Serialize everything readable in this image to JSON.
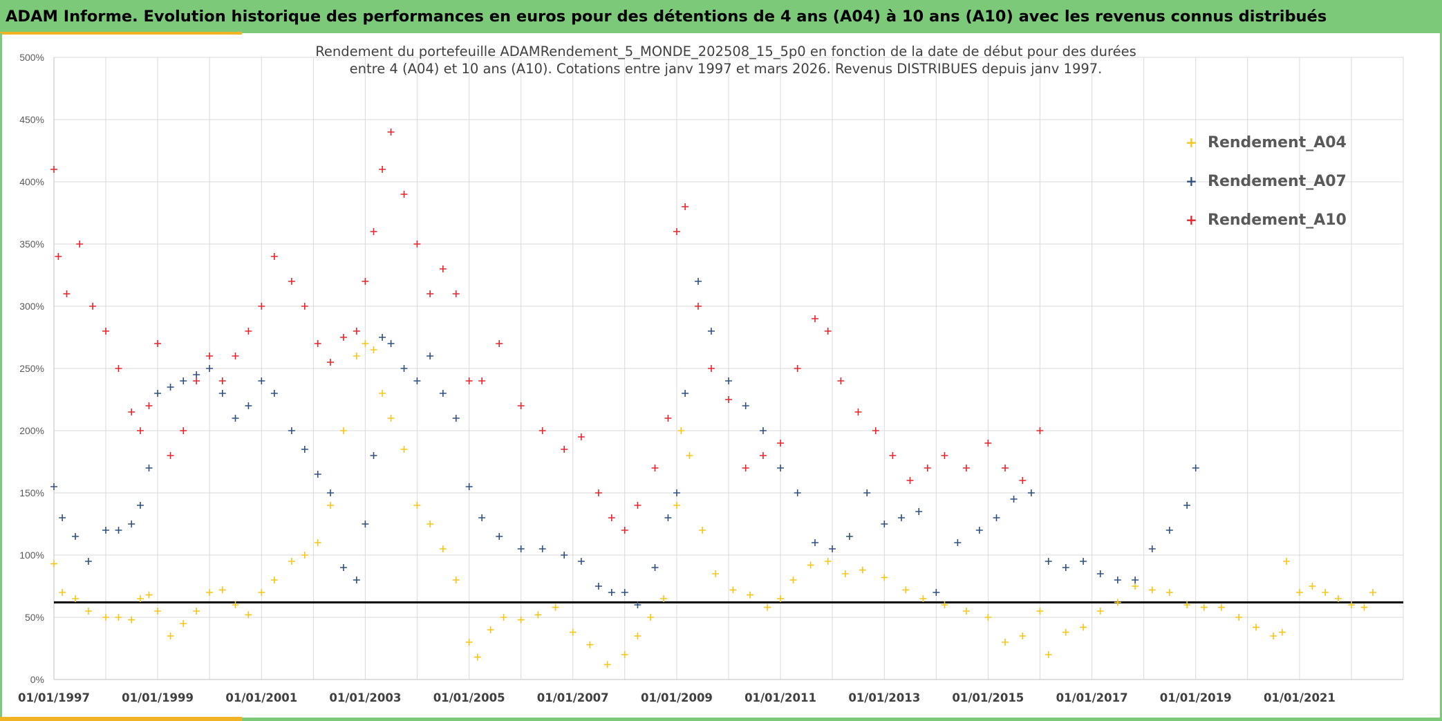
{
  "header": {
    "title": "ADAM Informe. Evolution historique des performances en euros pour des détentions de 4 ans (A04) à 10 ans (A10) avec les revenus connus distribués"
  },
  "colors": {
    "header_bg": "#7dc97a",
    "accent": "#f0b323",
    "A04": "#f5c518",
    "A07": "#2f4f7f",
    "A10": "#e3242b",
    "reference_line": "#000000",
    "gridline": "#d9d9d9"
  },
  "chart_data": {
    "type": "scatter",
    "title_line1": "Rendement du portefeuille ADAMRendement_5_MONDE_202508_15_5p0 en fonction de la date de début pour des durées",
    "title_line2": "entre 4 (A04) et 10 ans (A10). Cotations entre janv 1997 et mars 2026. Revenus DISTRIBUES depuis janv 1997.",
    "xlabel": "",
    "ylabel": "",
    "xlim": [
      "1997-01-01",
      "2023-01-01"
    ],
    "ylim": [
      0,
      500
    ],
    "y_unit": "%",
    "yticks": [
      0,
      50,
      100,
      150,
      200,
      250,
      300,
      350,
      400,
      450,
      500
    ],
    "ytick_labels": [
      "0%",
      "50%",
      "100%",
      "150%",
      "200%",
      "250%",
      "300%",
      "350%",
      "400%",
      "450%",
      "500%"
    ],
    "xtick_labels": [
      "01/01/1997",
      "01/01/1999",
      "01/01/2001",
      "01/01/2003",
      "01/01/2005",
      "01/01/2007",
      "01/01/2009",
      "01/01/2011",
      "01/01/2013",
      "01/01/2015",
      "01/01/2017",
      "01/01/2019",
      "01/01/2021"
    ],
    "grid": true,
    "legend_position": "top-right",
    "reference_line_value": 62,
    "marker": "+",
    "series": [
      {
        "name": "Rendement_A04",
        "color_key": "A04",
        "x": [
          "1997-01-01",
          "1997-03-01",
          "1997-06-01",
          "1997-09-01",
          "1998-01-01",
          "1998-04-01",
          "1998-07-01",
          "1998-09-01",
          "1998-11-01",
          "1999-01-01",
          "1999-04-01",
          "1999-07-01",
          "1999-10-01",
          "2000-01-01",
          "2000-04-01",
          "2000-07-01",
          "2000-10-01",
          "2001-01-01",
          "2001-04-01",
          "2001-08-01",
          "2001-11-01",
          "2002-02-01",
          "2002-05-01",
          "2002-08-01",
          "2002-11-01",
          "2003-01-01",
          "2003-03-01",
          "2003-05-01",
          "2003-07-01",
          "2003-10-01",
          "2004-01-01",
          "2004-04-01",
          "2004-07-01",
          "2004-10-01",
          "2005-01-01",
          "2005-03-01",
          "2005-06-01",
          "2005-09-01",
          "2006-01-01",
          "2006-05-01",
          "2006-09-01",
          "2007-01-01",
          "2007-05-01",
          "2007-09-01",
          "2008-01-01",
          "2008-04-01",
          "2008-07-01",
          "2008-10-01",
          "2009-01-01",
          "2009-02-01",
          "2009-04-01",
          "2009-07-01",
          "2009-10-01",
          "2010-02-01",
          "2010-06-01",
          "2010-10-01",
          "2011-01-01",
          "2011-04-01",
          "2011-08-01",
          "2011-12-01",
          "2012-04-01",
          "2012-08-01",
          "2013-01-01",
          "2013-06-01",
          "2013-10-01",
          "2014-03-01",
          "2014-08-01",
          "2015-01-01",
          "2015-05-01",
          "2015-09-01",
          "2016-01-01",
          "2016-03-01",
          "2016-07-01",
          "2016-11-01",
          "2017-03-01",
          "2017-07-01",
          "2017-11-01",
          "2018-03-01",
          "2018-07-01",
          "2018-11-01",
          "2019-03-01",
          "2019-07-01",
          "2019-11-01",
          "2020-03-01",
          "2020-07-01",
          "2020-09-01",
          "2020-10-01",
          "2021-01-01",
          "2021-04-01",
          "2021-07-01",
          "2021-10-01",
          "2022-01-01",
          "2022-04-01",
          "2022-06-01"
        ],
        "y": [
          93,
          70,
          65,
          55,
          50,
          50,
          48,
          65,
          68,
          55,
          35,
          45,
          55,
          70,
          72,
          60,
          52,
          70,
          80,
          95,
          100,
          110,
          140,
          200,
          260,
          270,
          265,
          230,
          210,
          185,
          140,
          125,
          105,
          80,
          30,
          18,
          40,
          50,
          48,
          52,
          58,
          38,
          28,
          12,
          20,
          35,
          50,
          65,
          140,
          200,
          180,
          120,
          85,
          72,
          68,
          58,
          65,
          80,
          92,
          95,
          85,
          88,
          82,
          72,
          65,
          60,
          55,
          50,
          30,
          35,
          55,
          20,
          38,
          42,
          55,
          62,
          75,
          72,
          70,
          60,
          58,
          58,
          50,
          42,
          35,
          38,
          95,
          70,
          75,
          70,
          65,
          60,
          58,
          70
        ]
      },
      {
        "name": "Rendement_A07",
        "color_key": "A07",
        "x": [
          "1997-01-01",
          "1997-03-01",
          "1997-06-01",
          "1997-09-01",
          "1998-01-01",
          "1998-04-01",
          "1998-07-01",
          "1998-09-01",
          "1998-11-01",
          "1999-01-01",
          "1999-04-01",
          "1999-07-01",
          "1999-10-01",
          "2000-01-01",
          "2000-04-01",
          "2000-07-01",
          "2000-10-01",
          "2001-01-01",
          "2001-04-01",
          "2001-08-01",
          "2001-11-01",
          "2002-02-01",
          "2002-05-01",
          "2002-08-01",
          "2002-11-01",
          "2003-01-01",
          "2003-03-01",
          "2003-05-01",
          "2003-07-01",
          "2003-10-01",
          "2004-01-01",
          "2004-04-01",
          "2004-07-01",
          "2004-10-01",
          "2005-01-01",
          "2005-04-01",
          "2005-08-01",
          "2006-01-01",
          "2006-06-01",
          "2006-11-01",
          "2007-03-01",
          "2007-07-01",
          "2007-10-01",
          "2008-01-01",
          "2008-04-01",
          "2008-08-01",
          "2008-11-01",
          "2009-01-01",
          "2009-03-01",
          "2009-06-01",
          "2009-09-01",
          "2010-01-01",
          "2010-05-01",
          "2010-09-01",
          "2011-01-01",
          "2011-05-01",
          "2011-09-01",
          "2012-01-01",
          "2012-05-01",
          "2012-09-01",
          "2013-01-01",
          "2013-05-01",
          "2013-09-01",
          "2014-01-01",
          "2014-06-01",
          "2014-11-01",
          "2015-03-01",
          "2015-07-01",
          "2015-11-01",
          "2016-03-01",
          "2016-07-01",
          "2016-11-01",
          "2017-03-01",
          "2017-07-01",
          "2017-11-01",
          "2018-03-01",
          "2018-07-01",
          "2018-11-01",
          "2019-01-01"
        ],
        "y": [
          155,
          130,
          115,
          95,
          120,
          120,
          125,
          140,
          170,
          230,
          235,
          240,
          245,
          250,
          230,
          210,
          220,
          240,
          230,
          200,
          185,
          165,
          150,
          90,
          80,
          125,
          180,
          275,
          270,
          250,
          240,
          260,
          230,
          210,
          155,
          130,
          115,
          105,
          105,
          100,
          95,
          75,
          70,
          70,
          60,
          90,
          130,
          150,
          230,
          320,
          280,
          240,
          220,
          200,
          170,
          150,
          110,
          105,
          115,
          150,
          125,
          130,
          135,
          70,
          110,
          120,
          130,
          145,
          150,
          95,
          90,
          95,
          85,
          80,
          80,
          105,
          120,
          140,
          170
        ]
      },
      {
        "name": "Rendement_A10",
        "color_key": "A10",
        "x": [
          "1997-01-01",
          "1997-02-01",
          "1997-04-01",
          "1997-07-01",
          "1997-10-01",
          "1998-01-01",
          "1998-04-01",
          "1998-07-01",
          "1998-09-01",
          "1998-11-01",
          "1999-01-01",
          "1999-04-01",
          "1999-07-01",
          "1999-10-01",
          "2000-01-01",
          "2000-04-01",
          "2000-07-01",
          "2000-10-01",
          "2001-01-01",
          "2001-04-01",
          "2001-08-01",
          "2001-11-01",
          "2002-02-01",
          "2002-05-01",
          "2002-08-01",
          "2002-11-01",
          "2003-01-01",
          "2003-03-01",
          "2003-05-01",
          "2003-07-01",
          "2003-10-01",
          "2004-01-01",
          "2004-04-01",
          "2004-07-01",
          "2004-10-01",
          "2005-01-01",
          "2005-04-01",
          "2005-08-01",
          "2006-01-01",
          "2006-06-01",
          "2006-11-01",
          "2007-03-01",
          "2007-07-01",
          "2007-10-01",
          "2008-01-01",
          "2008-04-01",
          "2008-08-01",
          "2008-11-01",
          "2009-01-01",
          "2009-03-01",
          "2009-06-01",
          "2009-09-01",
          "2010-01-01",
          "2010-05-01",
          "2010-09-01",
          "2011-01-01",
          "2011-05-01",
          "2011-09-01",
          "2011-12-01",
          "2012-03-01",
          "2012-07-01",
          "2012-11-01",
          "2013-03-01",
          "2013-07-01",
          "2013-11-01",
          "2014-03-01",
          "2014-08-01",
          "2015-01-01",
          "2015-05-01",
          "2015-09-01",
          "2016-01-01"
        ],
        "y": [
          410,
          340,
          310,
          350,
          300,
          280,
          250,
          215,
          200,
          220,
          270,
          180,
          200,
          240,
          260,
          240,
          260,
          280,
          300,
          340,
          320,
          300,
          270,
          255,
          275,
          280,
          320,
          360,
          410,
          440,
          390,
          350,
          310,
          330,
          310,
          240,
          240,
          270,
          220,
          200,
          185,
          195,
          150,
          130,
          120,
          140,
          170,
          210,
          360,
          380,
          300,
          250,
          225,
          170,
          180,
          190,
          250,
          290,
          280,
          240,
          215,
          200,
          180,
          160,
          170,
          180,
          170,
          190,
          170,
          160,
          200
        ]
      }
    ]
  }
}
